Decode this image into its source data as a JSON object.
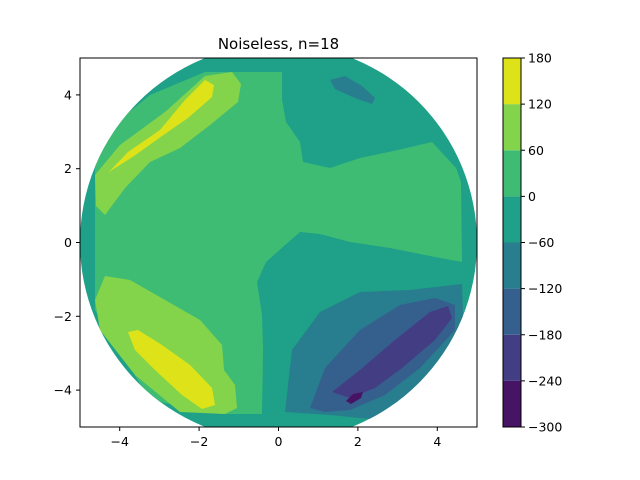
{
  "chart_data": {
    "type": "contour",
    "title": "Noiseless, n=18",
    "xlabel": "",
    "ylabel": "",
    "xlim": [
      -5,
      5
    ],
    "ylim": [
      -5,
      5
    ],
    "x_ticks": [
      -4,
      -2,
      0,
      2,
      4
    ],
    "y_ticks": [
      -4,
      -2,
      0,
      2,
      4
    ],
    "domain_shape": "disk",
    "domain_radius": 5,
    "grid": false,
    "legend": "none",
    "colorbar": {
      "position": "right",
      "levels": [
        -300,
        -240,
        -180,
        -120,
        -60,
        0,
        60,
        120,
        180
      ],
      "tick_labels": [
        "−300",
        "−240",
        "−180",
        "−120",
        "−60",
        "0",
        "60",
        "120",
        "180"
      ],
      "colors": [
        "#471365",
        "#433d84",
        "#355f8d",
        "#287d8e",
        "#1fa088",
        "#3fbc73",
        "#84d44b",
        "#dde318"
      ]
    },
    "regions": [
      {
        "name": "upper-left-high-band",
        "level_range": [
          120,
          180
        ],
        "center": [
          -2.9,
          3.2
        ]
      },
      {
        "name": "lower-left-high-band",
        "level_range": [
          120,
          180
        ],
        "center": [
          -2.7,
          -3.3
        ]
      },
      {
        "name": "upper-right-low-spot",
        "level_range": [
          -120,
          -60
        ],
        "center": [
          1.8,
          3.9
        ]
      },
      {
        "name": "lower-right-low-spot",
        "level_range": [
          -300,
          -240
        ],
        "center": [
          1.9,
          -4.2
        ]
      },
      {
        "name": "central-cross-band",
        "level_range": [
          0,
          60
        ],
        "center": [
          0,
          0.5
        ]
      }
    ]
  }
}
